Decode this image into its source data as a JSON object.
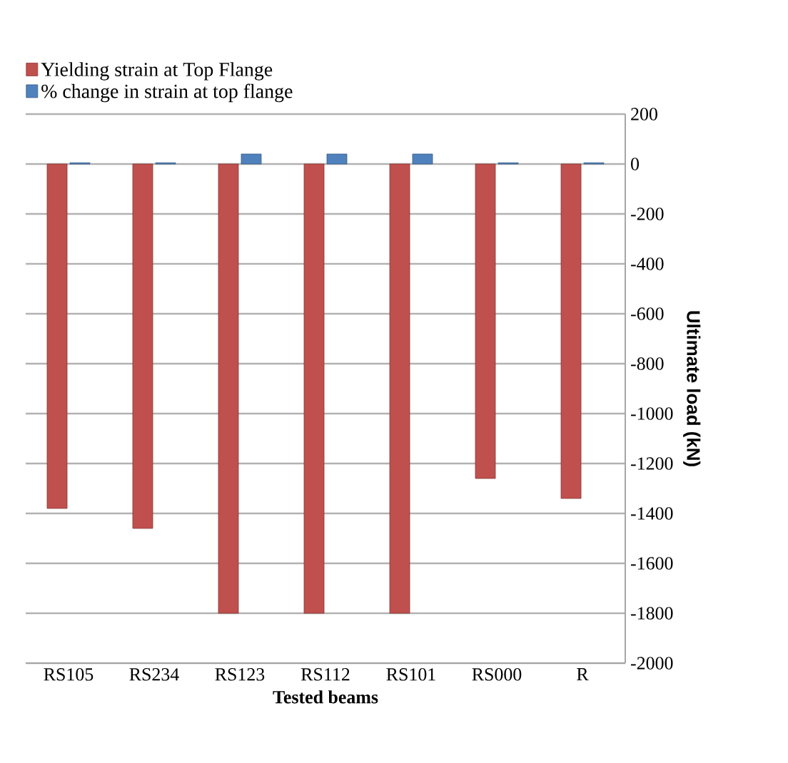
{
  "chart_data": {
    "type": "bar",
    "xlabel": "Tested beams",
    "ylabel": "Ultimate load (kN)",
    "categories": [
      "RS105",
      "RS234",
      "RS123",
      "RS112",
      "RS101",
      "RS000",
      "R"
    ],
    "series": [
      {
        "name": "Yielding strain at Top Flange",
        "color": "#c0504d",
        "values": [
          -1380,
          -1460,
          -1800,
          -1800,
          -1800,
          -1260,
          -1340
        ]
      },
      {
        "name": "% change in strain at top flange",
        "color": "#4f81bd",
        "values": [
          5,
          5,
          40,
          40,
          40,
          5,
          5
        ]
      }
    ],
    "ylim": [
      -2000,
      200
    ],
    "yticks": [
      200,
      0,
      -200,
      -400,
      -600,
      -800,
      -1000,
      -1200,
      -1400,
      -1600,
      -1800,
      -2000
    ],
    "grid": "y",
    "legend": "top left"
  }
}
